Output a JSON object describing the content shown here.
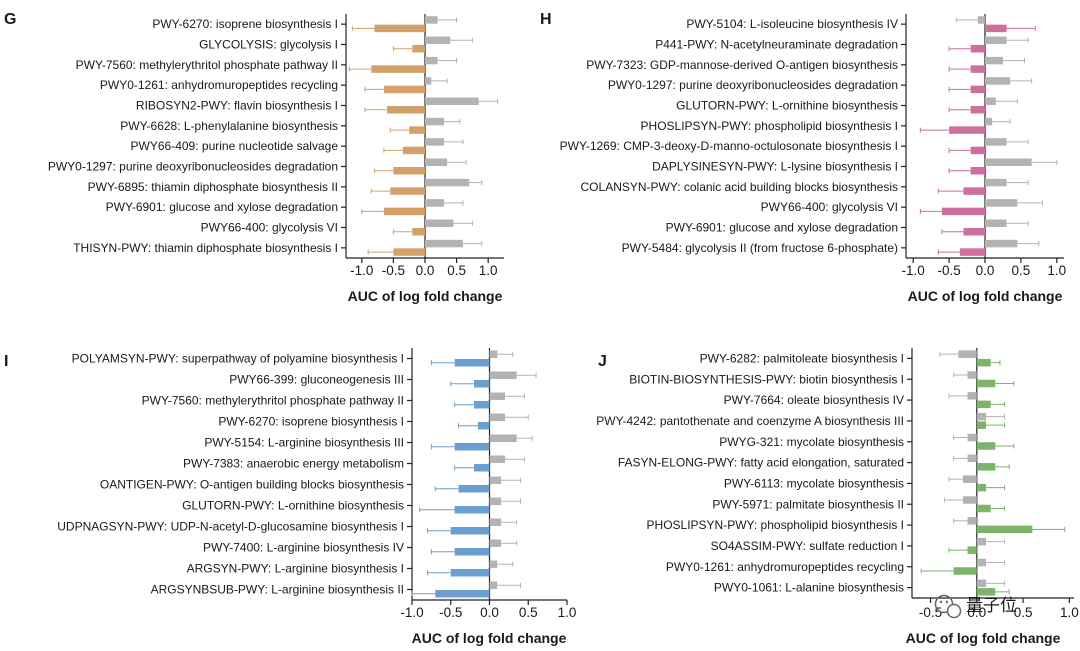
{
  "chart_data": [
    {
      "type": "bar",
      "panel_label": "G",
      "xlabel": "AUC of log fold change",
      "xlim": [
        -1.25,
        1.25
      ],
      "xticks": [
        -1.0,
        -0.5,
        0.0,
        0.5,
        1.0
      ],
      "xtick_labels": [
        "-1.0",
        "-0.5",
        "0.0",
        "0.5",
        "1.0"
      ],
      "color": "#d4a06a",
      "grey": "#b3b3b3",
      "categories": [
        "PWY-6270: isoprene biosynthesis I",
        "GLYCOLYSIS: glycolysis I",
        "PWY-7560: methylerythritol phosphate pathway II",
        "PWY0-1261: anhydromuropeptides recycling",
        "RIBOSYN2-PWY: flavin biosynthesis I",
        "PWY-6628: L-phenylalanine biosynthesis",
        "PWY66-409: purine nucleotide salvage",
        "PWY0-1297: purine deoxyribonucleosides degradation",
        "PWY-6895: thiamin diphosphate biosynthesis II",
        "PWY-6901: glucose and xylose degradation",
        "PWY66-400: glycolysis VI",
        "THISYN-PWY: thiamin diphosphate biosynthesis I"
      ],
      "series": [
        {
          "name": "colored",
          "values": [
            -0.8,
            -0.2,
            -0.85,
            -0.65,
            -0.6,
            -0.25,
            -0.35,
            -0.5,
            -0.55,
            -0.65,
            -0.2,
            -0.5
          ],
          "errors": [
            0.35,
            0.3,
            0.35,
            0.3,
            0.35,
            0.3,
            0.3,
            0.3,
            0.3,
            0.35,
            0.3,
            0.4
          ]
        },
        {
          "name": "grey",
          "values": [
            0.2,
            0.4,
            0.2,
            0.1,
            0.85,
            0.3,
            0.3,
            0.35,
            0.7,
            0.3,
            0.45,
            0.6
          ],
          "errors": [
            0.3,
            0.35,
            0.3,
            0.25,
            0.3,
            0.25,
            0.3,
            0.3,
            0.2,
            0.3,
            0.3,
            0.3
          ]
        }
      ]
    },
    {
      "type": "bar",
      "panel_label": "H",
      "xlabel": "AUC of log fold change",
      "xlim": [
        -1.1,
        1.1
      ],
      "xticks": [
        -1.0,
        -0.5,
        0.0,
        0.5,
        1.0
      ],
      "xtick_labels": [
        "-1.0",
        "-0.5",
        "0.0",
        "0.5",
        "1.0"
      ],
      "color": "#cf6fa0",
      "grey": "#b3b3b3",
      "categories": [
        "PWY-5104: L-isoleucine biosynthesis IV",
        "P441-PWY: N-acetylneuraminate degradation",
        "PWY-7323: GDP-mannose-derived O-antigen biosynthesis",
        "PWY0-1297: purine deoxyribonucleosides degradation",
        "GLUTORN-PWY: L-ornithine biosynthesis",
        "PHOSLIPSYN-PWY: phospholipid biosynthesis I",
        "PWY-1269: CMP-3-deoxy-D-manno-octulosonate biosynthesis I",
        "DAPLYSINESYN-PWY: L-lysine biosynthesis I",
        "COLANSYN-PWY: colanic acid building blocks biosynthesis",
        "PWY66-400: glycolysis VI",
        "PWY-6901: glucose and xylose degradation",
        "PWY-5484: glycolysis II (from fructose 6-phosphate)"
      ],
      "series": [
        {
          "name": "colored",
          "values": [
            0.3,
            -0.2,
            -0.2,
            -0.2,
            -0.2,
            -0.5,
            -0.2,
            -0.2,
            -0.3,
            -0.6,
            -0.3,
            -0.35
          ],
          "errors": [
            0.4,
            0.3,
            0.3,
            0.3,
            0.3,
            0.4,
            0.3,
            0.3,
            0.35,
            0.3,
            0.3,
            0.3
          ]
        },
        {
          "name": "grey",
          "values": [
            -0.1,
            0.3,
            0.25,
            0.35,
            0.15,
            0.1,
            0.3,
            0.65,
            0.3,
            0.45,
            0.3,
            0.45
          ],
          "errors": [
            0.3,
            0.3,
            0.3,
            0.3,
            0.3,
            0.25,
            0.3,
            0.35,
            0.3,
            0.35,
            0.3,
            0.3
          ]
        }
      ]
    },
    {
      "type": "bar",
      "panel_label": "I",
      "xlabel": "AUC of log fold change",
      "xlim": [
        -1.0,
        1.0
      ],
      "xticks": [
        -1.0,
        -0.5,
        0.0,
        0.5,
        1.0
      ],
      "xtick_labels": [
        "-1.0",
        "-0.5",
        "0.0",
        "0.5",
        "1.0"
      ],
      "color": "#6a9fcf",
      "grey": "#b3b3b3",
      "categories": [
        "POLYAMSYN-PWY: superpathway of polyamine biosynthesis I",
        "PWY66-399: gluconeogenesis III",
        "PWY-7560: methylerythritol phosphate pathway II",
        "PWY-6270: isoprene biosynthesis I",
        "PWY-5154: L-arginine biosynthesis III",
        "PWY-7383: anaerobic energy metabolism",
        "OANTIGEN-PWY: O-antigen building blocks biosynthesis",
        "GLUTORN-PWY: L-ornithine biosynthesis",
        "UDPNAGSYN-PWY: UDP-N-acetyl-D-glucosamine biosynthesis I",
        "PWY-7400: L-arginine biosynthesis IV",
        "ARGSYN-PWY: L-arginine biosynthesis I",
        "ARGSYNBSUB-PWY: L-arginine biosynthesis II"
      ],
      "series": [
        {
          "name": "colored",
          "values": [
            -0.45,
            -0.2,
            -0.2,
            -0.15,
            -0.45,
            -0.2,
            -0.4,
            -0.45,
            -0.5,
            -0.45,
            -0.5,
            -0.7
          ],
          "errors": [
            0.3,
            0.3,
            0.25,
            0.25,
            0.3,
            0.25,
            0.3,
            0.45,
            0.3,
            0.3,
            0.3,
            0.3
          ]
        },
        {
          "name": "grey",
          "values": [
            0.1,
            0.35,
            0.2,
            0.2,
            0.35,
            0.2,
            0.15,
            0.15,
            0.15,
            0.15,
            0.1,
            0.1
          ],
          "errors": [
            0.2,
            0.25,
            0.25,
            0.3,
            0.2,
            0.25,
            0.25,
            0.25,
            0.2,
            0.2,
            0.2,
            0.3
          ]
        }
      ]
    },
    {
      "type": "bar",
      "panel_label": "J",
      "xlabel": "AUC of log fold change",
      "xlim": [
        -0.7,
        1.05
      ],
      "xticks": [
        -0.5,
        0.0,
        0.5,
        1.0
      ],
      "xtick_labels": [
        "-0.5",
        "0.0",
        "0.5",
        "1.0"
      ],
      "color": "#7ab56a",
      "grey": "#b3b3b3",
      "categories": [
        "PWY-6282: palmitoleate biosynthesis I",
        "BIOTIN-BIOSYNTHESIS-PWY: biotin biosynthesis I",
        "PWY-7664: oleate biosynthesis IV",
        "PWY-4242: pantothenate and coenzyme A biosynthesis III",
        "PWYG-321: mycolate biosynthesis",
        "FASYN-ELONG-PWY: fatty acid elongation, saturated",
        "PWY-6113: mycolate biosynthesis",
        "PWY-5971: palmitate biosynthesis II",
        "PHOSLIPSYN-PWY: phospholipid biosynthesis I",
        "SO4ASSIM-PWY: sulfate reduction I",
        "PWY0-1261: anhydromuropeptides recycling",
        "PWY0-1061: L-alanine biosynthesis"
      ],
      "series": [
        {
          "name": "colored",
          "values": [
            0.15,
            0.2,
            0.15,
            0.1,
            0.2,
            0.2,
            0.1,
            0.15,
            0.6,
            -0.1,
            -0.25,
            0.2
          ],
          "errors": [
            0.1,
            0.2,
            0.15,
            0.2,
            0.2,
            0.15,
            0.2,
            0.15,
            0.35,
            0.2,
            0.35,
            0.15
          ]
        },
        {
          "name": "grey",
          "values": [
            -0.2,
            -0.1,
            -0.1,
            0.1,
            -0.1,
            -0.1,
            -0.15,
            -0.15,
            -0.1,
            0.1,
            0.1,
            0.1
          ],
          "errors": [
            0.2,
            0.15,
            0.2,
            0.2,
            0.15,
            0.15,
            0.15,
            0.2,
            0.15,
            0.2,
            0.2,
            0.2
          ]
        }
      ]
    }
  ],
  "watermark": {
    "text": "量子位"
  }
}
